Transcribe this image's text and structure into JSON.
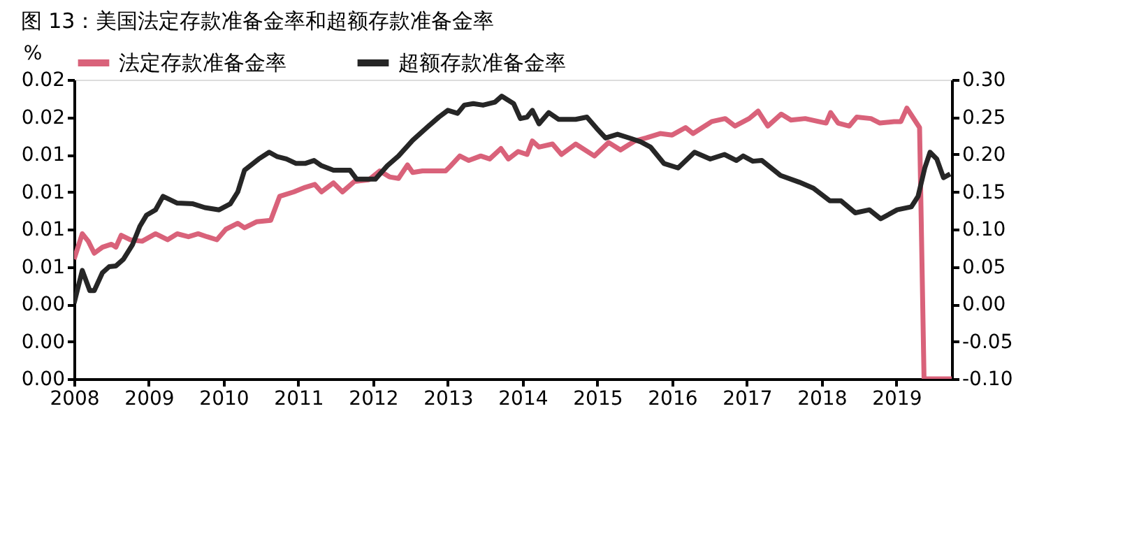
{
  "chart_data": {
    "type": "line",
    "title": "图 13：美国法定存款准备金率和超额存款准备金率",
    "ylabel": "%",
    "xlim": [
      2008,
      2019.74
    ],
    "xticks": [
      2008,
      2009,
      2010,
      2011,
      2012,
      2013,
      2014,
      2015,
      2016,
      2017,
      2018,
      2019
    ],
    "ylim": [
      0,
      0.02
    ],
    "yticks": [
      {
        "value": 0,
        "label": "0.00"
      },
      {
        "value": 0.0025,
        "label": "0.00"
      },
      {
        "value": 0.005,
        "label": "0.00"
      },
      {
        "value": 0.0075,
        "label": "0.01"
      },
      {
        "value": 0.01,
        "label": "0.01"
      },
      {
        "value": 0.0125,
        "label": "0.01"
      },
      {
        "value": 0.015,
        "label": "0.01"
      },
      {
        "value": 0.0175,
        "label": "0.02"
      },
      {
        "value": 0.02,
        "label": "0.02"
      }
    ],
    "y2lim": [
      -0.1,
      0.3
    ],
    "y2ticks": [
      {
        "value": -0.1,
        "label": "-0.10"
      },
      {
        "value": -0.05,
        "label": "-0.05"
      },
      {
        "value": 0,
        "label": "0.00"
      },
      {
        "value": 0.05,
        "label": "0.05"
      },
      {
        "value": 0.1,
        "label": "0.10"
      },
      {
        "value": 0.15,
        "label": "0.15"
      },
      {
        "value": 0.2,
        "label": "0.20"
      },
      {
        "value": 0.25,
        "label": "0.25"
      },
      {
        "value": 0.3,
        "label": "0.30"
      }
    ],
    "grid": false,
    "legend": "top",
    "marker": "none",
    "line_style": "solid",
    "series": [
      {
        "name": "法定存款准备金率",
        "color": "#d9627a",
        "axis": "y",
        "x": [
          2008.0,
          2008.11,
          2008.19,
          2008.27,
          2008.38,
          2008.5,
          2008.56,
          2008.63,
          2008.75,
          2008.91,
          2009.09,
          2009.25,
          2009.38,
          2009.53,
          2009.66,
          2009.78,
          2009.91,
          2010.03,
          2010.19,
          2010.28,
          2010.44,
          2010.63,
          2010.75,
          2010.94,
          2011.09,
          2011.22,
          2011.31,
          2011.47,
          2011.59,
          2011.75,
          2011.94,
          2012.09,
          2012.22,
          2012.34,
          2012.46,
          2012.53,
          2012.66,
          2012.81,
          2012.97,
          2013.03,
          2013.16,
          2013.28,
          2013.44,
          2013.56,
          2013.71,
          2013.81,
          2013.94,
          2014.06,
          2014.13,
          2014.22,
          2014.4,
          2014.52,
          2014.71,
          2014.96,
          2015.15,
          2015.31,
          2015.5,
          2015.65,
          2015.84,
          2016.0,
          2016.18,
          2016.28,
          2016.53,
          2016.71,
          2016.84,
          2017.03,
          2017.15,
          2017.28,
          2017.46,
          2017.59,
          2017.78,
          2017.96,
          2018.06,
          2018.12,
          2018.22,
          2018.37,
          2018.47,
          2018.66,
          2018.78,
          2018.97,
          2019.06,
          2019.14,
          2019.31,
          2019.37,
          2019.74
        ],
        "values": [
          0.008,
          0.0097,
          0.0092,
          0.0084,
          0.0088,
          0.009,
          0.0088,
          0.0096,
          0.0093,
          0.0092,
          0.0097,
          0.0093,
          0.0097,
          0.0095,
          0.0097,
          0.0095,
          0.0093,
          0.01,
          0.0104,
          0.0101,
          0.0105,
          0.0106,
          0.0122,
          0.0125,
          0.0128,
          0.013,
          0.0125,
          0.0131,
          0.0125,
          0.0132,
          0.0133,
          0.0139,
          0.0135,
          0.0134,
          0.0143,
          0.0138,
          0.0139,
          0.0139,
          0.0139,
          0.0142,
          0.0149,
          0.0146,
          0.0149,
          0.0147,
          0.0154,
          0.0147,
          0.0152,
          0.015,
          0.0159,
          0.0155,
          0.0157,
          0.015,
          0.0157,
          0.0149,
          0.0158,
          0.0153,
          0.0159,
          0.0161,
          0.0164,
          0.0163,
          0.0168,
          0.0164,
          0.0172,
          0.0174,
          0.0169,
          0.0174,
          0.0179,
          0.0169,
          0.0177,
          0.0173,
          0.0174,
          0.0172,
          0.0171,
          0.0178,
          0.0171,
          0.0169,
          0.0175,
          0.0174,
          0.0171,
          0.0172,
          0.0172,
          0.0181,
          0.0168,
          0,
          0
        ]
      },
      {
        "name": "超额存款准备金率",
        "color": "#262626",
        "axis": "y2",
        "x": [
          2008.0,
          2008.11,
          2008.21,
          2008.27,
          2008.38,
          2008.47,
          2008.56,
          2008.66,
          2008.78,
          2008.88,
          2008.97,
          2009.09,
          2009.19,
          2009.38,
          2009.59,
          2009.75,
          2009.94,
          2010.09,
          2010.19,
          2010.28,
          2010.47,
          2010.61,
          2010.72,
          2010.84,
          2010.97,
          2011.09,
          2011.21,
          2011.31,
          2011.47,
          2011.69,
          2011.78,
          2012.03,
          2012.19,
          2012.34,
          2012.53,
          2012.72,
          2012.88,
          2013.0,
          2013.13,
          2013.22,
          2013.34,
          2013.47,
          2013.63,
          2013.72,
          2013.88,
          2013.97,
          2014.06,
          2014.13,
          2014.22,
          2014.35,
          2014.48,
          2014.71,
          2014.86,
          2014.99,
          2015.11,
          2015.27,
          2015.46,
          2015.58,
          2015.71,
          2015.89,
          2016.08,
          2016.3,
          2016.51,
          2016.7,
          2016.86,
          2016.95,
          2017.08,
          2017.2,
          2017.45,
          2017.7,
          2017.89,
          2018.11,
          2018.26,
          2018.45,
          2018.64,
          2018.79,
          2019.01,
          2019.2,
          2019.29,
          2019.38,
          2019.45,
          2019.54,
          2019.63,
          2019.72
        ],
        "values": [
          0.001,
          0.045,
          0.018,
          0.018,
          0.042,
          0.05,
          0.051,
          0.06,
          0.079,
          0.104,
          0.119,
          0.126,
          0.144,
          0.135,
          0.134,
          0.129,
          0.126,
          0.134,
          0.15,
          0.179,
          0.194,
          0.203,
          0.197,
          0.194,
          0.188,
          0.188,
          0.192,
          0.185,
          0.179,
          0.179,
          0.167,
          0.167,
          0.185,
          0.198,
          0.219,
          0.236,
          0.25,
          0.259,
          0.255,
          0.266,
          0.268,
          0.266,
          0.27,
          0.278,
          0.268,
          0.248,
          0.25,
          0.259,
          0.241,
          0.256,
          0.247,
          0.247,
          0.25,
          0.235,
          0.222,
          0.227,
          0.221,
          0.217,
          0.21,
          0.188,
          0.182,
          0.203,
          0.194,
          0.2,
          0.192,
          0.198,
          0.191,
          0.192,
          0.172,
          0.163,
          0.155,
          0.138,
          0.138,
          0.122,
          0.126,
          0.114,
          0.126,
          0.13,
          0.144,
          0.182,
          0.203,
          0.194,
          0.169,
          0.174
        ]
      }
    ]
  }
}
